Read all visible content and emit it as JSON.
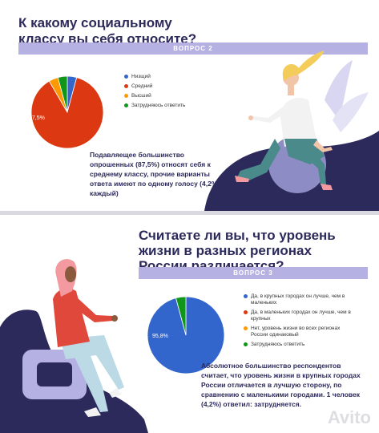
{
  "colors": {
    "navy": "#2c2a5b",
    "banner": "#b5b2e3",
    "blue": "#3366cc",
    "red": "#dc3912",
    "orange": "#ff9900",
    "green": "#109618"
  },
  "top": {
    "title": "К какому социальному классу вы себя относите?",
    "banner": "ВОПРОС 2",
    "note": "Подавляещее большинство опрошенных (87,5%) относят себя к среднему классу, прочие варианты ответа имеют по одному голосу (4,2% каждый)"
  },
  "bottom": {
    "title": "Считаете ли вы, что уровень жизни в разных регионах России различается?",
    "banner": "ВОПРОС 3",
    "note": "Абсолютное большинство респондентов считает, что уровень жизни в крупных городах России отличается в лучшую сторону, по сравнению с маленькими городами. 1 человек (4,2%) ответил: затрудняется."
  },
  "watermark": "Avito",
  "chart_data": [
    {
      "type": "pie",
      "categories": [
        "Низщий",
        "Средний",
        "Высший",
        "Затрудняюсь ответить"
      ],
      "values": [
        4.2,
        87.5,
        4.2,
        4.2
      ],
      "colors": [
        "#3366cc",
        "#dc3912",
        "#ff9900",
        "#109618"
      ],
      "slice_label": "87,5%",
      "legend_position": "right"
    },
    {
      "type": "pie",
      "categories": [
        "Да, в крупных городах он лучше, чем в маленьких",
        "Да, в маленьких городах он лучше, чем в крупных",
        "Нет, уровень жизни во всех регионах России одинаковый",
        "Затрудняюсь ответить"
      ],
      "values": [
        95.8,
        0,
        0,
        4.2
      ],
      "colors": [
        "#3366cc",
        "#dc3912",
        "#ff9900",
        "#109618"
      ],
      "slice_label": "95,8%",
      "legend_position": "right"
    }
  ]
}
